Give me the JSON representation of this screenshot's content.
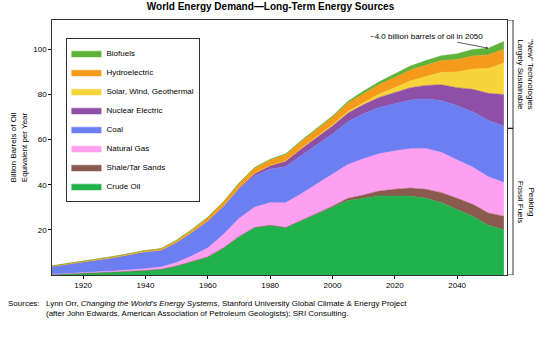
{
  "chart_data": {
    "type": "area",
    "stacked": true,
    "title": "World Energy Demand—Long-Term Energy Sources",
    "y_label": [
      "Billion Barrels of Oil",
      "Equivalent per Year"
    ],
    "x": [
      1910,
      1920,
      1930,
      1940,
      1945,
      1950,
      1955,
      1960,
      1965,
      1970,
      1975,
      1980,
      1985,
      1990,
      1995,
      2000,
      2005,
      2010,
      2015,
      2020,
      2025,
      2030,
      2035,
      2040,
      2045,
      2050,
      2055
    ],
    "series": [
      {
        "name": "Crude Oil",
        "color": "#22b24c",
        "values": [
          0.3,
          0.7,
          1.3,
          2,
          2.5,
          4,
          6,
          8,
          12,
          17,
          21,
          22,
          21,
          24,
          27,
          30,
          33,
          34,
          35,
          35,
          35,
          34,
          32,
          29,
          26,
          22,
          20
        ]
      },
      {
        "name": "Shale/Tar Sands",
        "color": "#8b5a4e",
        "values": [
          0,
          0,
          0,
          0,
          0,
          0,
          0,
          0,
          0,
          0,
          0,
          0,
          0,
          0,
          0.3,
          0.5,
          1,
          1.5,
          2.2,
          3,
          3.5,
          4,
          4.5,
          5,
          5.3,
          5.5,
          6
        ]
      },
      {
        "name": "Natural Gas",
        "color": "#ff9ff0",
        "values": [
          0,
          0.2,
          0.5,
          0.8,
          1,
          1.5,
          2.5,
          4,
          6,
          8,
          9,
          10,
          11,
          12,
          13,
          14,
          15,
          16,
          16.5,
          17,
          17.5,
          18,
          17.8,
          17,
          16.5,
          16,
          15
        ]
      },
      {
        "name": "Coal",
        "color": "#6b7ff2",
        "values": [
          3.5,
          5,
          6,
          7.5,
          7.5,
          9,
          10.5,
          12,
          12.5,
          13,
          14,
          15,
          16,
          17,
          17.5,
          18,
          19,
          20,
          20.5,
          21,
          21.5,
          22,
          23,
          24,
          24.5,
          25,
          25
        ]
      },
      {
        "name": "Nuclear Electric",
        "color": "#8e4fa6",
        "values": [
          0,
          0,
          0,
          0,
          0,
          0,
          0,
          0,
          0,
          0.5,
          1,
          1.5,
          2.5,
          3,
          3.2,
          3.5,
          3.8,
          4,
          4.5,
          5,
          5.5,
          6,
          7,
          8,
          10,
          12,
          14
        ]
      },
      {
        "name": "Solar, Wind, Geothermal",
        "color": "#f7d43a",
        "values": [
          0,
          0,
          0,
          0,
          0,
          0,
          0,
          0,
          0,
          0,
          0,
          0,
          0,
          0.2,
          0.3,
          0.5,
          0.7,
          1,
          1.5,
          2,
          3,
          4,
          5.5,
          7,
          9,
          11,
          14
        ]
      },
      {
        "name": "Hydroelectric",
        "color": "#f59a1b",
        "values": [
          0.2,
          0.3,
          0.4,
          0.5,
          0.6,
          0.8,
          1.1,
          1.5,
          1.8,
          2,
          2.3,
          2.5,
          2.8,
          3,
          3.2,
          3.5,
          3.8,
          4,
          4.2,
          4.5,
          4.8,
          5,
          5.2,
          5.5,
          5.8,
          6,
          6
        ]
      },
      {
        "name": "Biofuels",
        "color": "#5fb33a",
        "values": [
          0.1,
          0.1,
          0.1,
          0.1,
          0.1,
          0.2,
          0.2,
          0.2,
          0.2,
          0.3,
          0.3,
          0.3,
          0.4,
          0.4,
          0.5,
          0.5,
          0.7,
          1,
          1.2,
          1.5,
          1.8,
          2,
          2.2,
          2.5,
          2.8,
          3,
          3.5
        ]
      }
    ],
    "xlim": [
      1910,
      2056
    ],
    "xticks": [
      1920,
      1940,
      1960,
      1980,
      2000,
      2020,
      2040
    ],
    "ylim": [
      0,
      113
    ],
    "yticks": [
      20,
      40,
      60,
      80,
      100
    ],
    "grid": false,
    "legend": "top left",
    "annotations": [
      {
        "text": "~4.0 billion barrels of oil in 2050",
        "x": 2050
      }
    ],
    "brackets": [
      {
        "lines": [
          "\"New\" Technologies",
          "Largely Sustainable"
        ],
        "range": [
          65,
          113
        ]
      },
      {
        "lines": [
          "Peaking",
          "Fossil Fuels"
        ],
        "range": [
          0,
          65
        ]
      }
    ],
    "source": {
      "label": "Sources:",
      "lines": [
        "Lynn Orr, Changing the World's Energy Systems, Stanford University Global Climate & Energy Project",
        "(after John Edwards, American Association of Petroleum Geologists); SRI Consulting."
      ],
      "italic": "Changing the World's Energy Systems"
    }
  }
}
